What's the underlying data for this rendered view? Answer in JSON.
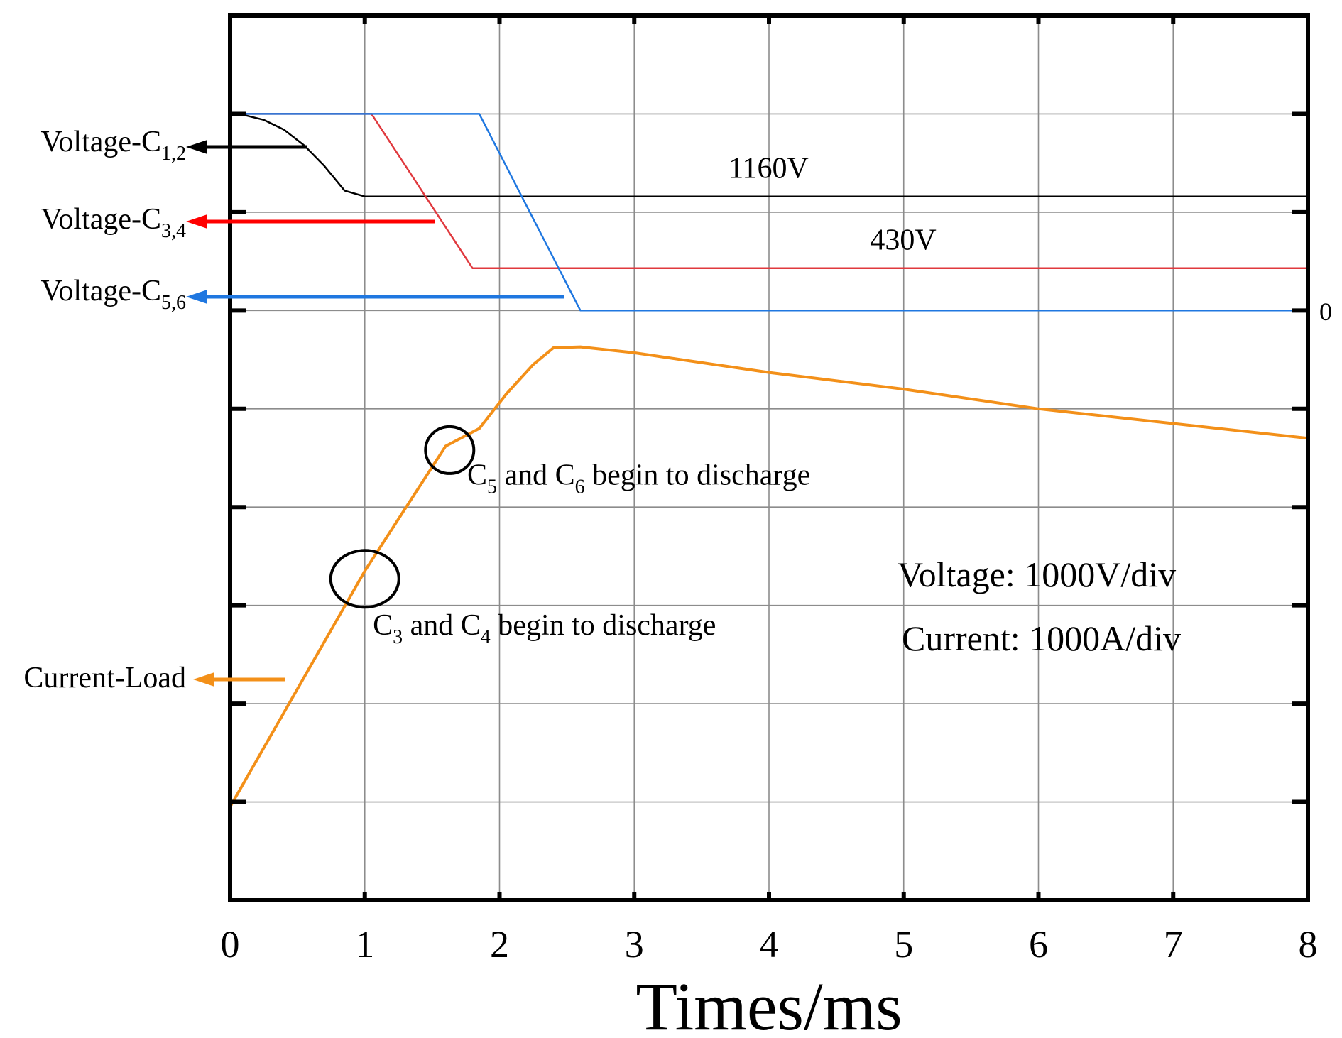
{
  "chart_data": {
    "type": "line",
    "title": "",
    "xlabel": "Times/ms",
    "ylabel": "",
    "xlim": [
      0,
      8
    ],
    "ylim": [
      -6,
      3
    ],
    "x_ticks": [
      0,
      1,
      2,
      3,
      4,
      5,
      6,
      7,
      8
    ],
    "x_tick_labels": [
      "0",
      "1",
      "2",
      "3",
      "4",
      "5",
      "6",
      "7",
      "8"
    ],
    "y_gridlines": [
      -5,
      -4,
      -3,
      -2,
      -1,
      0,
      1,
      2
    ],
    "grid": true,
    "units": "1 division = 1000 V (voltage traces) / 1000 A (current trace)",
    "zero_label": "0",
    "scale_text": {
      "voltage": "Voltage: 1000V/div",
      "current": "Current: 1000A/div"
    },
    "series": [
      {
        "name": "Voltage-C1,2",
        "legend_main": "Voltage-C",
        "legend_sub": "1,2",
        "color": "#000000",
        "arrow_color": "#000000",
        "x": [
          0,
          0.1,
          0.25,
          0.4,
          0.55,
          0.7,
          0.85,
          1.0,
          8.0
        ],
        "y": [
          2.0,
          1.99,
          1.94,
          1.84,
          1.68,
          1.47,
          1.22,
          1.16,
          1.16
        ]
      },
      {
        "name": "Voltage-C3,4",
        "legend_main": "Voltage-C",
        "legend_sub": "3,4",
        "color": "#e0393e",
        "arrow_color": "#ff0000",
        "x": [
          0,
          1.05,
          1.8,
          8.0
        ],
        "y": [
          2.0,
          2.0,
          0.43,
          0.43
        ]
      },
      {
        "name": "Voltage-C5,6",
        "legend_main": "Voltage-C",
        "legend_sub": "5,6",
        "color": "#1f77e0",
        "arrow_color": "#1f77e0",
        "x": [
          0,
          1.85,
          2.6,
          8.0
        ],
        "y": [
          2.0,
          2.0,
          0.0,
          0.0
        ]
      },
      {
        "name": "Current-Load",
        "legend_main": "Current-Load",
        "legend_sub": "",
        "color": "#f39019",
        "arrow_color": "#f39019",
        "x": [
          0,
          1.0,
          1.6,
          1.85,
          2.05,
          2.25,
          2.4,
          2.6,
          3.0,
          4.0,
          5.0,
          6.0,
          7.0,
          8.0
        ],
        "y": [
          -5.05,
          -2.65,
          -1.38,
          -1.2,
          -0.85,
          -0.55,
          -0.38,
          -0.37,
          -0.43,
          -0.63,
          -0.8,
          -1.0,
          -1.15,
          -1.3
        ]
      }
    ],
    "annotations": [
      {
        "name": "annot-1160v",
        "text": "1160V",
        "x": 3.7,
        "y": 1.35
      },
      {
        "name": "annot-430v",
        "text": "430V",
        "x": 4.75,
        "y": 0.62
      },
      {
        "name": "annot-c5c6",
        "pre": "C",
        "sub1": "5",
        "mid": " and C",
        "sub2": "6",
        "post": " begin to discharge",
        "x": 1.76,
        "y": -1.77,
        "circle": {
          "x": 1.63,
          "y": -1.42
        }
      },
      {
        "name": "annot-c3c4",
        "pre": "C",
        "sub1": "3",
        "mid": " and C",
        "sub2": "4",
        "post": " begin to discharge",
        "x": 1.06,
        "y": -3.3,
        "circle": {
          "x": 1.0,
          "y": -2.73
        }
      }
    ]
  }
}
